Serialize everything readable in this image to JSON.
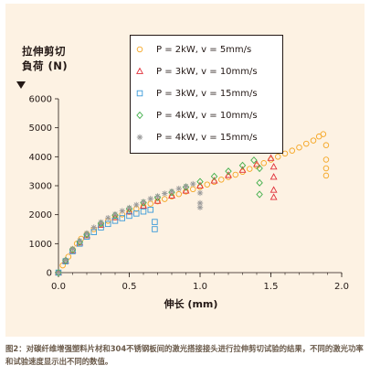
{
  "chart_data": {
    "type": "scatter",
    "ylabel_line1": "拉伸剪切",
    "ylabel_line2": "負荷 (N)",
    "xlabel": "伸长 (mm)",
    "xlim": [
      0,
      2.0
    ],
    "ylim": [
      0,
      6000
    ],
    "xticks": [
      "0.0",
      "0.5",
      "1.0",
      "1.5",
      "2.0"
    ],
    "yticks": [
      "0",
      "1000",
      "2000",
      "3000",
      "4000",
      "5000",
      "6000"
    ],
    "grid": false,
    "legend_position": "top",
    "series": [
      {
        "name": "P = 2kW, v = 5mm/s",
        "marker": "circle",
        "color": "#f5a623",
        "points": [
          [
            0.0,
            0
          ],
          [
            0.03,
            250
          ],
          [
            0.07,
            550
          ],
          [
            0.1,
            800
          ],
          [
            0.13,
            1000
          ],
          [
            0.16,
            1170
          ],
          [
            0.2,
            1330
          ],
          [
            0.25,
            1500
          ],
          [
            0.3,
            1660
          ],
          [
            0.35,
            1790
          ],
          [
            0.4,
            1910
          ],
          [
            0.45,
            2010
          ],
          [
            0.5,
            2100
          ],
          [
            0.55,
            2200
          ],
          [
            0.6,
            2290
          ],
          [
            0.65,
            2380
          ],
          [
            0.7,
            2460
          ],
          [
            0.75,
            2540
          ],
          [
            0.8,
            2630
          ],
          [
            0.85,
            2710
          ],
          [
            0.9,
            2800
          ],
          [
            0.95,
            2880
          ],
          [
            1.0,
            2960
          ],
          [
            1.05,
            3040
          ],
          [
            1.1,
            3130
          ],
          [
            1.15,
            3210
          ],
          [
            1.2,
            3300
          ],
          [
            1.25,
            3380
          ],
          [
            1.3,
            3480
          ],
          [
            1.35,
            3580
          ],
          [
            1.4,
            3680
          ],
          [
            1.45,
            3780
          ],
          [
            1.5,
            3900
          ],
          [
            1.55,
            4000
          ],
          [
            1.6,
            4110
          ],
          [
            1.65,
            4210
          ],
          [
            1.7,
            4320
          ],
          [
            1.75,
            4450
          ],
          [
            1.8,
            4560
          ],
          [
            1.84,
            4700
          ],
          [
            1.87,
            4780
          ],
          [
            1.89,
            4400
          ],
          [
            1.89,
            3900
          ],
          [
            1.89,
            3600
          ],
          [
            1.89,
            3350
          ]
        ]
      },
      {
        "name": "P = 3kW, v = 10mm/s",
        "marker": "triangle",
        "color": "#e0303a",
        "points": [
          [
            0.0,
            0
          ],
          [
            0.05,
            400
          ],
          [
            0.1,
            760
          ],
          [
            0.15,
            1030
          ],
          [
            0.2,
            1280
          ],
          [
            0.3,
            1640
          ],
          [
            0.4,
            1900
          ],
          [
            0.5,
            2100
          ],
          [
            0.6,
            2300
          ],
          [
            0.7,
            2470
          ],
          [
            0.8,
            2650
          ],
          [
            0.9,
            2820
          ],
          [
            1.0,
            3000
          ],
          [
            1.1,
            3170
          ],
          [
            1.2,
            3360
          ],
          [
            1.3,
            3540
          ],
          [
            1.4,
            3740
          ],
          [
            1.5,
            3950
          ],
          [
            1.52,
            3650
          ],
          [
            1.52,
            3300
          ],
          [
            1.52,
            2850
          ],
          [
            1.52,
            2600
          ]
        ]
      },
      {
        "name": "P = 3kW, v = 15mm/s",
        "marker": "square",
        "color": "#3a9ad9",
        "points": [
          [
            0.0,
            0
          ],
          [
            0.05,
            390
          ],
          [
            0.1,
            740
          ],
          [
            0.15,
            1000
          ],
          [
            0.2,
            1240
          ],
          [
            0.25,
            1400
          ],
          [
            0.3,
            1560
          ],
          [
            0.35,
            1680
          ],
          [
            0.4,
            1790
          ],
          [
            0.45,
            1880
          ],
          [
            0.5,
            1960
          ],
          [
            0.55,
            2040
          ],
          [
            0.6,
            2110
          ],
          [
            0.65,
            2170
          ],
          [
            0.68,
            1750
          ],
          [
            0.68,
            1500
          ]
        ]
      },
      {
        "name": "P = 4kW, v = 10mm/s",
        "marker": "diamond",
        "color": "#3fae49",
        "points": [
          [
            0.0,
            0
          ],
          [
            0.05,
            420
          ],
          [
            0.1,
            790
          ],
          [
            0.15,
            1060
          ],
          [
            0.2,
            1320
          ],
          [
            0.3,
            1700
          ],
          [
            0.4,
            1980
          ],
          [
            0.5,
            2200
          ],
          [
            0.6,
            2410
          ],
          [
            0.7,
            2590
          ],
          [
            0.8,
            2770
          ],
          [
            0.9,
            2950
          ],
          [
            1.0,
            3140
          ],
          [
            1.1,
            3320
          ],
          [
            1.2,
            3500
          ],
          [
            1.3,
            3700
          ],
          [
            1.38,
            3880
          ],
          [
            1.42,
            3600
          ],
          [
            1.42,
            3100
          ],
          [
            1.42,
            2700
          ]
        ]
      },
      {
        "name": "P = 4kW, v = 15mm/s",
        "marker": "asterisk",
        "color": "#9a9a9a",
        "points": [
          [
            0.0,
            0
          ],
          [
            0.05,
            430
          ],
          [
            0.1,
            820
          ],
          [
            0.15,
            1100
          ],
          [
            0.2,
            1360
          ],
          [
            0.25,
            1560
          ],
          [
            0.3,
            1740
          ],
          [
            0.35,
            1890
          ],
          [
            0.4,
            2020
          ],
          [
            0.45,
            2130
          ],
          [
            0.5,
            2240
          ],
          [
            0.55,
            2340
          ],
          [
            0.6,
            2450
          ],
          [
            0.65,
            2550
          ],
          [
            0.7,
            2640
          ],
          [
            0.75,
            2730
          ],
          [
            0.8,
            2810
          ],
          [
            0.85,
            2900
          ],
          [
            0.9,
            2980
          ],
          [
            0.95,
            3060
          ],
          [
            1.0,
            2750
          ],
          [
            1.0,
            2400
          ],
          [
            1.0,
            2250
          ]
        ]
      }
    ]
  },
  "caption": "图2：对碳纤维增强塑料片材和304不锈钢板间的激光搭接接头进行拉伸剪切试验的结果，不同的激光功率和试验速度显示出不同的数值。"
}
